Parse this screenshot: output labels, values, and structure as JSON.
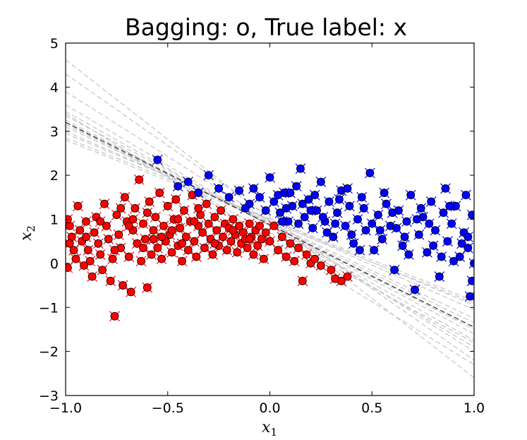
{
  "chart_data": {
    "type": "scatter",
    "title": "Bagging: o, True label: x",
    "xlabel": "x",
    "xlabel_sub": "1",
    "ylabel": "x",
    "ylabel_sub": "2",
    "xlim": [
      -1.0,
      1.0
    ],
    "ylim": [
      -3,
      5
    ],
    "x_ticks": [
      -1.0,
      -0.5,
      0.0,
      0.5,
      1.0
    ],
    "x_tick_labels": [
      "−1.0",
      "−0.5",
      "0.0",
      "0.5",
      "1.0"
    ],
    "y_ticks": [
      -3,
      -2,
      -1,
      0,
      1,
      2,
      3,
      4,
      5
    ],
    "y_tick_labels": [
      "−3",
      "−2",
      "−1",
      "0",
      "1",
      "2",
      "3",
      "4",
      "5"
    ],
    "grid": false,
    "colors": {
      "class_red": "#ff0000",
      "class_blue": "#0000ff",
      "marker_edge": "#000000",
      "bagged_lines": "#c8c8c8",
      "mean_line": "#333333"
    },
    "bagged_lines": [
      {
        "x": [
          -1.0,
          1.0
        ],
        "y": [
          4.62,
          -2.6
        ]
      },
      {
        "x": [
          -1.0,
          1.0
        ],
        "y": [
          4.3,
          -2.2
        ]
      },
      {
        "x": [
          -1.0,
          1.0
        ],
        "y": [
          3.9,
          -2.0
        ]
      },
      {
        "x": [
          -1.0,
          1.0
        ],
        "y": [
          3.6,
          -1.9
        ]
      },
      {
        "x": [
          -1.0,
          1.0
        ],
        "y": [
          3.45,
          -1.75
        ]
      },
      {
        "x": [
          -1.0,
          1.0
        ],
        "y": [
          3.35,
          -1.6
        ]
      },
      {
        "x": [
          -1.0,
          1.0
        ],
        "y": [
          3.25,
          -1.5
        ]
      },
      {
        "x": [
          -1.0,
          1.0
        ],
        "y": [
          3.15,
          -1.35
        ]
      },
      {
        "x": [
          -1.0,
          1.0
        ],
        "y": [
          3.1,
          -1.25
        ]
      },
      {
        "x": [
          -1.0,
          1.0
        ],
        "y": [
          3.0,
          -1.05
        ]
      },
      {
        "x": [
          -1.0,
          1.0
        ],
        "y": [
          2.95,
          -0.95
        ]
      },
      {
        "x": [
          -1.0,
          1.0
        ],
        "y": [
          2.85,
          -0.85
        ]
      },
      {
        "x": [
          -1.0,
          1.0
        ],
        "y": [
          2.8,
          -0.9
        ]
      },
      {
        "x": [
          -1.0,
          1.0
        ],
        "y": [
          3.2,
          -1.8
        ]
      },
      {
        "x": [
          -1.0,
          1.0
        ],
        "y": [
          3.4,
          -2.3
        ]
      }
    ],
    "mean_line": {
      "x": [
        -1.0,
        1.0
      ],
      "y": [
        3.2,
        -1.45
      ]
    },
    "series": [
      {
        "true_label": "red",
        "points": [
          [
            -0.98,
            0.85
          ],
          [
            -0.97,
            0.6
          ],
          [
            -0.96,
            0.3
          ],
          [
            -0.95,
            0.1
          ],
          [
            -0.99,
            -0.1
          ],
          [
            -0.99,
            1.0
          ],
          [
            -0.98,
            0.45
          ],
          [
            -0.94,
            1.3
          ],
          [
            -0.93,
            0.75
          ],
          [
            -0.92,
            0.5
          ],
          [
            -0.91,
            -0.05
          ],
          [
            -0.9,
            0.95
          ],
          [
            -0.89,
            0.3
          ],
          [
            -0.88,
            0.05
          ],
          [
            -0.87,
            -0.3
          ],
          [
            -0.86,
            0.7
          ],
          [
            -0.85,
            1.05
          ],
          [
            -0.84,
            0.45
          ],
          [
            -0.83,
            0.2
          ],
          [
            -0.82,
            -0.15
          ],
          [
            -0.81,
            1.35
          ],
          [
            -0.8,
            0.85
          ],
          [
            -0.79,
            0.55
          ],
          [
            -0.78,
            -0.4
          ],
          [
            -0.77,
            0.1
          ],
          [
            -0.76,
            -1.2
          ],
          [
            -0.75,
            1.1
          ],
          [
            -0.74,
            0.65
          ],
          [
            -0.73,
            0.35
          ],
          [
            -0.72,
            -0.5
          ],
          [
            -0.71,
            1.5
          ],
          [
            -0.7,
            0.95
          ],
          [
            -0.69,
            0.15
          ],
          [
            -0.68,
            -0.65
          ],
          [
            -0.67,
            0.75
          ],
          [
            -0.66,
            1.25
          ],
          [
            -0.65,
            0.45
          ],
          [
            -0.64,
            1.9
          ],
          [
            -0.63,
            0.05
          ],
          [
            -0.62,
            0.9
          ],
          [
            -0.61,
            0.55
          ],
          [
            -0.6,
            -0.55
          ],
          [
            -0.59,
            1.4
          ],
          [
            -0.58,
            0.2
          ],
          [
            -0.57,
            0.75
          ],
          [
            -0.56,
            1.05
          ],
          [
            -0.55,
            0.35
          ],
          [
            -0.54,
            1.6
          ],
          [
            -0.53,
            0.1
          ],
          [
            -0.52,
            0.85
          ],
          [
            -0.51,
            0.5
          ],
          [
            -0.5,
            1.3
          ],
          [
            -0.49,
            0.65
          ],
          [
            -0.48,
            0.25
          ],
          [
            -0.47,
            1.0
          ],
          [
            -0.46,
            1.45
          ],
          [
            -0.45,
            0.4
          ],
          [
            -0.44,
            0.8
          ],
          [
            -0.43,
            0.05
          ],
          [
            -0.42,
            1.2
          ],
          [
            -0.41,
            0.6
          ],
          [
            -0.4,
            0.3
          ],
          [
            -0.39,
            0.95
          ],
          [
            -0.38,
            1.55
          ],
          [
            -0.37,
            0.5
          ],
          [
            -0.36,
            0.15
          ],
          [
            -0.35,
            0.85
          ],
          [
            -0.34,
            1.1
          ],
          [
            -0.33,
            0.7
          ],
          [
            -0.32,
            0.35
          ],
          [
            -0.31,
            1.35
          ],
          [
            -0.3,
            0.9
          ],
          [
            -0.29,
            0.55
          ],
          [
            -0.28,
            0.2
          ],
          [
            -0.27,
            1.05
          ],
          [
            -0.26,
            0.75
          ],
          [
            -0.25,
            0.4
          ],
          [
            -0.24,
            1.2
          ],
          [
            -0.23,
            0.6
          ],
          [
            -0.22,
            0.9
          ],
          [
            -0.21,
            0.3
          ],
          [
            -0.2,
            0.8
          ],
          [
            -0.19,
            0.5
          ],
          [
            -0.18,
            1.0
          ],
          [
            -0.17,
            0.65
          ],
          [
            -0.16,
            0.25
          ],
          [
            -0.15,
            0.85
          ],
          [
            -0.14,
            0.45
          ],
          [
            -0.13,
            0.7
          ],
          [
            -0.12,
            0.55
          ],
          [
            -0.11,
            0.35
          ],
          [
            -0.1,
            0.9
          ],
          [
            -0.09,
            0.6
          ],
          [
            -0.08,
            0.2
          ],
          [
            -0.07,
            0.75
          ],
          [
            -0.06,
            0.4
          ],
          [
            -0.05,
            0.85
          ],
          [
            -0.04,
            0.55
          ],
          [
            -0.03,
            0.1
          ],
          [
            -0.02,
            0.7
          ],
          [
            0.0,
            0.5
          ],
          [
            0.02,
            0.85
          ],
          [
            0.04,
            0.3
          ],
          [
            0.06,
            0.6
          ],
          [
            0.08,
            0.15
          ],
          [
            0.1,
            0.45
          ],
          [
            0.12,
            0.05
          ],
          [
            0.14,
            0.35
          ],
          [
            0.16,
            -0.4
          ],
          [
            0.18,
            0.2
          ],
          [
            0.2,
            0.0
          ],
          [
            0.22,
            0.1
          ],
          [
            0.25,
            -0.05
          ],
          [
            0.3,
            -0.15
          ],
          [
            0.32,
            -0.35
          ],
          [
            0.35,
            -0.4
          ],
          [
            0.38,
            -0.3
          ],
          [
            -0.9,
            0.6
          ],
          [
            -0.83,
            0.95
          ],
          [
            -0.76,
            0.3
          ],
          [
            -0.69,
            0.85
          ],
          [
            -0.62,
            0.35
          ],
          [
            -0.57,
            0.55
          ],
          [
            -0.48,
            0.75
          ],
          [
            -0.43,
            0.45
          ],
          [
            -0.37,
            0.95
          ],
          [
            -0.27,
            0.45
          ],
          [
            -0.18,
            0.75
          ],
          [
            -0.1,
            0.55
          ],
          [
            -0.73,
            1.25
          ],
          [
            -0.67,
            1.0
          ],
          [
            -0.6,
            1.15
          ],
          [
            -0.53,
            0.6
          ],
          [
            -0.35,
            1.25
          ],
          [
            -0.45,
            1.0
          ]
        ]
      },
      {
        "true_label": "blue",
        "points": [
          [
            -0.55,
            2.35
          ],
          [
            -0.45,
            1.75
          ],
          [
            -0.4,
            1.85
          ],
          [
            -0.35,
            1.6
          ],
          [
            -0.3,
            2.0
          ],
          [
            -0.25,
            1.7
          ],
          [
            -0.2,
            1.5
          ],
          [
            -0.15,
            1.65
          ],
          [
            -0.1,
            1.35
          ],
          [
            -0.05,
            1.5
          ],
          [
            0.0,
            1.95
          ],
          [
            0.02,
            1.4
          ],
          [
            0.05,
            1.15
          ],
          [
            0.07,
            1.6
          ],
          [
            0.09,
            0.95
          ],
          [
            0.11,
            1.3
          ],
          [
            0.13,
            1.75
          ],
          [
            0.15,
            2.15
          ],
          [
            0.17,
            1.05
          ],
          [
            0.19,
            1.45
          ],
          [
            0.21,
            0.8
          ],
          [
            0.23,
            1.2
          ],
          [
            0.25,
            1.85
          ],
          [
            0.27,
            0.95
          ],
          [
            0.29,
            1.4
          ],
          [
            0.31,
            0.6
          ],
          [
            0.33,
            1.15
          ],
          [
            0.35,
            1.65
          ],
          [
            0.37,
            0.85
          ],
          [
            0.39,
            1.3
          ],
          [
            0.41,
            0.45
          ],
          [
            0.43,
            1.0
          ],
          [
            0.45,
            1.5
          ],
          [
            0.47,
            0.75
          ],
          [
            0.49,
            2.05
          ],
          [
            0.51,
            0.3
          ],
          [
            0.53,
            1.1
          ],
          [
            0.55,
            0.55
          ],
          [
            0.57,
            1.35
          ],
          [
            0.59,
            0.85
          ],
          [
            0.61,
            -0.15
          ],
          [
            0.63,
            1.2
          ],
          [
            0.65,
            0.4
          ],
          [
            0.67,
            0.95
          ],
          [
            0.69,
            1.55
          ],
          [
            0.71,
            -0.6
          ],
          [
            0.73,
            0.65
          ],
          [
            0.75,
            1.05
          ],
          [
            0.77,
            0.25
          ],
          [
            0.79,
            1.4
          ],
          [
            0.81,
            0.75
          ],
          [
            0.83,
            -0.3
          ],
          [
            0.85,
            1.15
          ],
          [
            0.87,
            0.5
          ],
          [
            0.89,
            0.9
          ],
          [
            0.91,
            1.3
          ],
          [
            0.93,
            0.15
          ],
          [
            0.95,
            0.7
          ],
          [
            0.96,
            1.55
          ],
          [
            0.97,
            0.35
          ],
          [
            0.98,
            -0.75
          ],
          [
            0.99,
            1.1
          ],
          [
            1.0,
            0.0
          ],
          [
            0.99,
            -0.4
          ],
          [
            0.97,
            0.6
          ],
          [
            0.9,
            0.05
          ],
          [
            0.86,
            1.7
          ],
          [
            0.8,
            0.4
          ],
          [
            0.74,
            1.25
          ],
          [
            0.68,
            0.2
          ],
          [
            0.62,
            0.8
          ],
          [
            0.56,
            1.6
          ],
          [
            0.5,
            0.9
          ],
          [
            0.44,
            0.3
          ],
          [
            0.38,
            1.7
          ],
          [
            0.32,
            0.9
          ],
          [
            0.26,
            1.05
          ],
          [
            0.2,
            1.2
          ],
          [
            0.14,
            0.9
          ],
          [
            0.08,
            1.25
          ],
          [
            0.04,
            1.55
          ],
          [
            -0.02,
            1.2
          ],
          [
            0.6,
            1.15
          ],
          [
            0.66,
            0.6
          ],
          [
            0.72,
            1.0
          ],
          [
            0.78,
            0.9
          ],
          [
            0.84,
            0.15
          ],
          [
            0.88,
            1.3
          ],
          [
            0.94,
            0.45
          ],
          [
            0.54,
            0.75
          ],
          [
            0.46,
            1.25
          ],
          [
            0.4,
            0.65
          ],
          [
            0.34,
            1.45
          ],
          [
            0.28,
            0.7
          ],
          [
            0.22,
            1.55
          ],
          [
            0.16,
            1.35
          ],
          [
            0.1,
            1.6
          ],
          [
            0.06,
            0.95
          ],
          [
            -0.08,
            1.7
          ],
          [
            -0.12,
            1.25
          ]
        ]
      }
    ]
  }
}
